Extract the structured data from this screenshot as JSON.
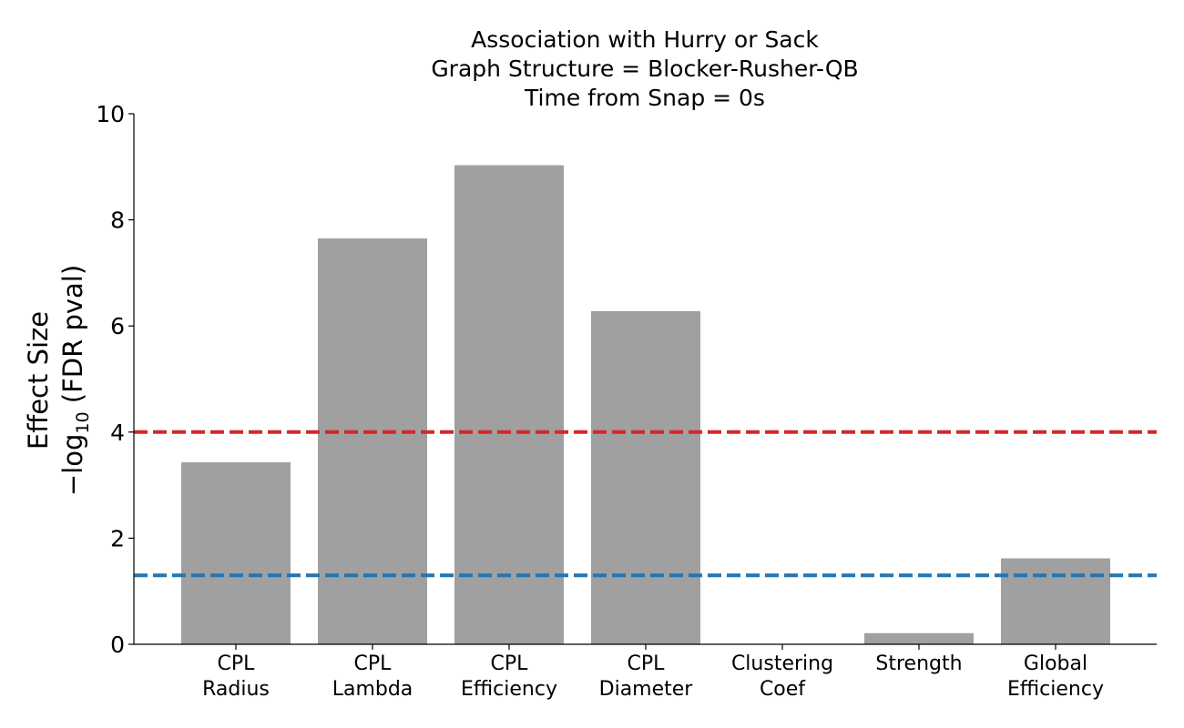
{
  "chart_data": {
    "type": "bar",
    "title_lines": [
      "Association with Hurry or Sack",
      "Graph Structure = Blocker-Rusher-QB",
      "Time from Snap = 0s"
    ],
    "ylabel_line1": "Effect Size",
    "ylabel_line2": {
      "prefix": "−log",
      "subscript": "10",
      "suffix": " (FDR pval)"
    },
    "categories": [
      [
        "CPL",
        "Radius"
      ],
      [
        "CPL",
        "Lambda"
      ],
      [
        "CPL",
        "Efficiency"
      ],
      [
        "CPL",
        "Diameter"
      ],
      [
        "Clustering",
        "Coef"
      ],
      [
        "Strength"
      ],
      [
        "Global",
        "Efficiency"
      ]
    ],
    "values": [
      3.43,
      7.65,
      9.03,
      6.28,
      0.0,
      0.21,
      1.62
    ],
    "ylim": [
      0,
      10
    ],
    "yticks": [
      "0",
      "2",
      "4",
      "6",
      "8",
      "10"
    ],
    "bar_color": "#a0a0a0",
    "reference_lines": [
      {
        "y": 4.0,
        "color": "#d62728",
        "style": "dashed"
      },
      {
        "y": 1.3,
        "color": "#1f77b4",
        "style": "dashed"
      }
    ],
    "grid": false,
    "legend": "none"
  }
}
